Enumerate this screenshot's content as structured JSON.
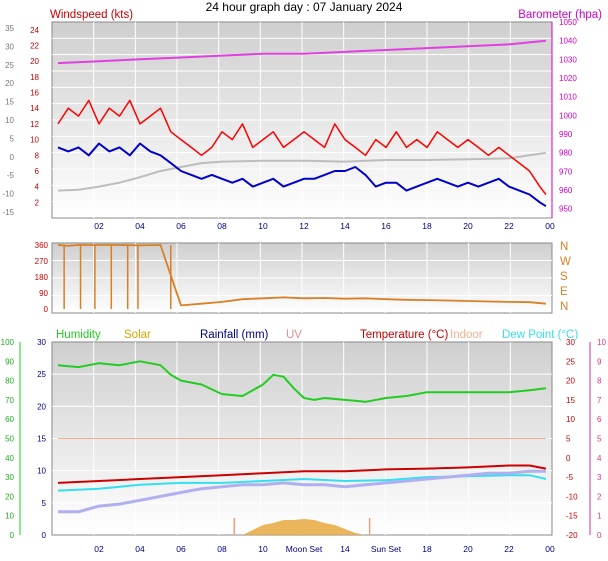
{
  "title": "24 hour graph day : 07 January 2024",
  "colors": {
    "wind_avg": "#0000cc",
    "wind_gust": "#ff0000",
    "wind_grey": "#bdbdbd",
    "baro": "#e040e0",
    "direction": "#d97f25",
    "humidity": "#22cc22",
    "solar": "#d9a300",
    "rainfall": "#000080",
    "uv": "#e09090",
    "temperature": "#cc0000",
    "indoor": "#f0b090",
    "dewpoint": "#33e0f0",
    "rain_series": "#b0b0f0"
  },
  "chart_data": [
    {
      "type": "line",
      "title": "",
      "left_label": "Windspeed (kts)",
      "right_label": "Barometer (hpa)",
      "x_ticks": [
        "02",
        "04",
        "06",
        "08",
        "10",
        "12",
        "14",
        "16",
        "18",
        "20",
        "22",
        "00"
      ],
      "left_ticks": [
        "2",
        "4",
        "6",
        "8",
        "10",
        "12",
        "14",
        "16",
        "18",
        "20",
        "22",
        "24"
      ],
      "outer_ticks": [
        "-15",
        "-10",
        "-5",
        "0",
        "5",
        "10",
        "15",
        "20",
        "25",
        "30",
        "35"
      ],
      "right_ticks": [
        "950",
        "960",
        "970",
        "980",
        "990",
        "1000",
        "1010",
        "1020",
        "1030",
        "1040",
        "1050"
      ],
      "ylim": [
        0,
        25
      ],
      "baro_ylim": [
        945,
        1050
      ],
      "grid": true,
      "series": [
        {
          "key": "baro",
          "x": [
            0,
            2,
            4,
            6,
            8,
            10,
            12,
            14,
            16,
            18,
            20,
            22,
            23.8
          ],
          "values": [
            1028,
            1029,
            1030,
            1031,
            1032,
            1033,
            1033,
            1034,
            1035,
            1036,
            1037,
            1038,
            1040
          ]
        },
        {
          "key": "wind_grey",
          "x": [
            0,
            1,
            2,
            3,
            4,
            5,
            6,
            7,
            8,
            10,
            12,
            14,
            16,
            18,
            20,
            22,
            23,
            23.8
          ],
          "values": [
            3.5,
            3.6,
            4.0,
            4.5,
            5.2,
            6.0,
            6.5,
            7.0,
            7.2,
            7.3,
            7.3,
            7.2,
            7.4,
            7.4,
            7.5,
            7.6,
            8.0,
            8.3
          ]
        },
        {
          "key": "wind_gust",
          "x": [
            0,
            0.5,
            1,
            1.5,
            2,
            2.5,
            3,
            3.5,
            4,
            4.5,
            5,
            5.5,
            6,
            6.5,
            7,
            7.5,
            8,
            8.5,
            9,
            9.5,
            10,
            10.5,
            11,
            11.5,
            12,
            12.5,
            13,
            13.5,
            14,
            14.5,
            15,
            15.5,
            16,
            16.5,
            17,
            17.5,
            18,
            18.5,
            19,
            19.5,
            20,
            20.5,
            21,
            21.5,
            22,
            22.5,
            23,
            23.5,
            23.8
          ],
          "values": [
            12,
            14,
            13,
            15,
            12,
            14,
            13,
            15,
            12,
            13,
            14,
            11,
            10,
            9,
            8,
            9,
            11,
            10,
            12,
            9,
            10,
            11,
            9,
            10,
            11,
            10,
            9,
            12,
            10,
            9,
            8,
            10,
            9,
            11,
            9,
            10,
            9,
            11,
            10,
            9,
            10,
            9,
            8,
            9,
            8,
            7,
            6,
            4,
            3
          ]
        },
        {
          "key": "wind_avg",
          "x": [
            0,
            0.5,
            1,
            1.5,
            2,
            2.5,
            3,
            3.5,
            4,
            4.5,
            5,
            5.5,
            6,
            6.5,
            7,
            7.5,
            8,
            8.5,
            9,
            9.5,
            10,
            10.5,
            11,
            11.5,
            12,
            12.5,
            13,
            13.5,
            14,
            14.5,
            15,
            15.5,
            16,
            16.5,
            17,
            17.5,
            18,
            18.5,
            19,
            19.5,
            20,
            20.5,
            21,
            21.5,
            22,
            22.5,
            23,
            23.5,
            23.8
          ],
          "values": [
            9,
            8.5,
            9,
            8,
            9.5,
            8.5,
            9,
            8,
            9.5,
            8.5,
            8,
            7,
            6,
            5.5,
            5,
            5.5,
            5,
            4.5,
            5,
            4,
            4.5,
            5,
            4,
            4.5,
            5,
            5,
            5.5,
            6,
            6,
            6.5,
            5.5,
            4,
            4.5,
            4.5,
            3.5,
            4,
            4.5,
            5,
            4.5,
            4,
            4.5,
            4,
            4.5,
            5,
            4,
            3.5,
            3,
            2,
            1.5
          ]
        }
      ]
    },
    {
      "type": "line",
      "title": "",
      "left_ticks": [
        "0",
        "90",
        "180",
        "270",
        "360"
      ],
      "compass": [
        "N",
        "W",
        "S",
        "E",
        "N"
      ],
      "ylim": [
        0,
        360
      ],
      "x": [
        0,
        0.5,
        1,
        2,
        3,
        4,
        5,
        6,
        7,
        8,
        9,
        10,
        11,
        12,
        13,
        14,
        15,
        16,
        17,
        18,
        19,
        20,
        21,
        22,
        23,
        23.8
      ],
      "values": [
        360,
        355,
        360,
        360,
        360,
        358,
        360,
        20,
        30,
        40,
        55,
        60,
        65,
        60,
        62,
        58,
        60,
        55,
        52,
        50,
        48,
        45,
        42,
        40,
        38,
        30
      ]
    },
    {
      "type": "line",
      "title": "",
      "legend": [
        "Humidity",
        "Solar",
        "Rainfall (mm)",
        "UV",
        "Temperature (°C)",
        "Indoor",
        "Dew Point (°C)"
      ],
      "x_ticks": [
        "02",
        "04",
        "06",
        "08",
        "10",
        "Moon Set",
        "14",
        "Sun Set",
        "18",
        "20",
        "22",
        "00"
      ],
      "outer_left_ticks": [
        "0",
        "10",
        "20",
        "30",
        "40",
        "50",
        "60",
        "70",
        "80",
        "90",
        "100"
      ],
      "left_ticks": [
        "0",
        "5",
        "10",
        "15",
        "20",
        "25",
        "30"
      ],
      "right_ticks": [
        "-20",
        "-15",
        "-10",
        "-5",
        "0",
        "5",
        "10",
        "15",
        "20",
        "25",
        "30"
      ],
      "outer_right_ticks": [
        "0",
        "1",
        "2",
        "3",
        "4",
        "5",
        "6",
        "7",
        "8",
        "9",
        "10"
      ],
      "ylim": [
        0,
        30
      ],
      "grid": true,
      "series": [
        {
          "key": "humidity",
          "x": [
            0,
            1,
            2,
            3,
            4,
            5,
            5.5,
            6,
            7,
            8,
            9,
            10,
            10.5,
            11,
            11.5,
            12,
            12.5,
            13,
            14,
            15,
            16,
            17,
            18,
            19,
            20,
            21,
            22,
            23,
            23.8
          ],
          "values": [
            88,
            87,
            89,
            88,
            90,
            88,
            83,
            80,
            78,
            73,
            72,
            78,
            83,
            82,
            76,
            71,
            70,
            71,
            70,
            69,
            71,
            72,
            74,
            74,
            74,
            74,
            74,
            75,
            76
          ]
        },
        {
          "key": "temperature",
          "x": [
            0,
            2,
            4,
            6,
            8,
            10,
            12,
            14,
            16,
            18,
            20,
            22,
            23,
            23.8
          ],
          "values": [
            -6.5,
            -6,
            -5.5,
            -5,
            -4.5,
            -4,
            -3.5,
            -3.5,
            -3,
            -2.8,
            -2.5,
            -2,
            -2,
            -2.8
          ]
        },
        {
          "key": "dewpoint",
          "x": [
            0,
            2,
            4,
            6,
            8,
            10,
            12,
            14,
            16,
            18,
            20,
            22,
            23,
            23.8
          ],
          "values": [
            -8.5,
            -8,
            -7,
            -6.5,
            -6.5,
            -6,
            -5.5,
            -6,
            -5.8,
            -5,
            -4.8,
            -4.5,
            -4.5,
            -5.5
          ]
        },
        {
          "key": "indoor",
          "x": [
            0,
            23.8
          ],
          "values": [
            5,
            5
          ]
        },
        {
          "key": "rain_series",
          "x": [
            0,
            1,
            2,
            3,
            4,
            5,
            6,
            7,
            8,
            9,
            10,
            11,
            12,
            13,
            14,
            15,
            16,
            17,
            18,
            19,
            20,
            21,
            22,
            23,
            23.8
          ],
          "values": [
            -14,
            -14,
            -12.5,
            -12,
            -11,
            -10,
            -9,
            -8,
            -7.5,
            -7,
            -7,
            -6.5,
            -7,
            -7,
            -7.5,
            -7,
            -6.5,
            -6,
            -5.5,
            -5,
            -4.5,
            -4,
            -4,
            -3.5,
            -3.5
          ]
        },
        {
          "key": "solar",
          "x": [
            8,
            9,
            9.5,
            10,
            10.5,
            11,
            11.5,
            12,
            12.5,
            13,
            13.5,
            14,
            14.5,
            15
          ],
          "values": [
            0,
            0,
            0.5,
            1,
            1.2,
            1.5,
            1.5,
            1.6,
            1.5,
            1.2,
            1,
            0.6,
            0.2,
            0
          ]
        }
      ]
    }
  ]
}
